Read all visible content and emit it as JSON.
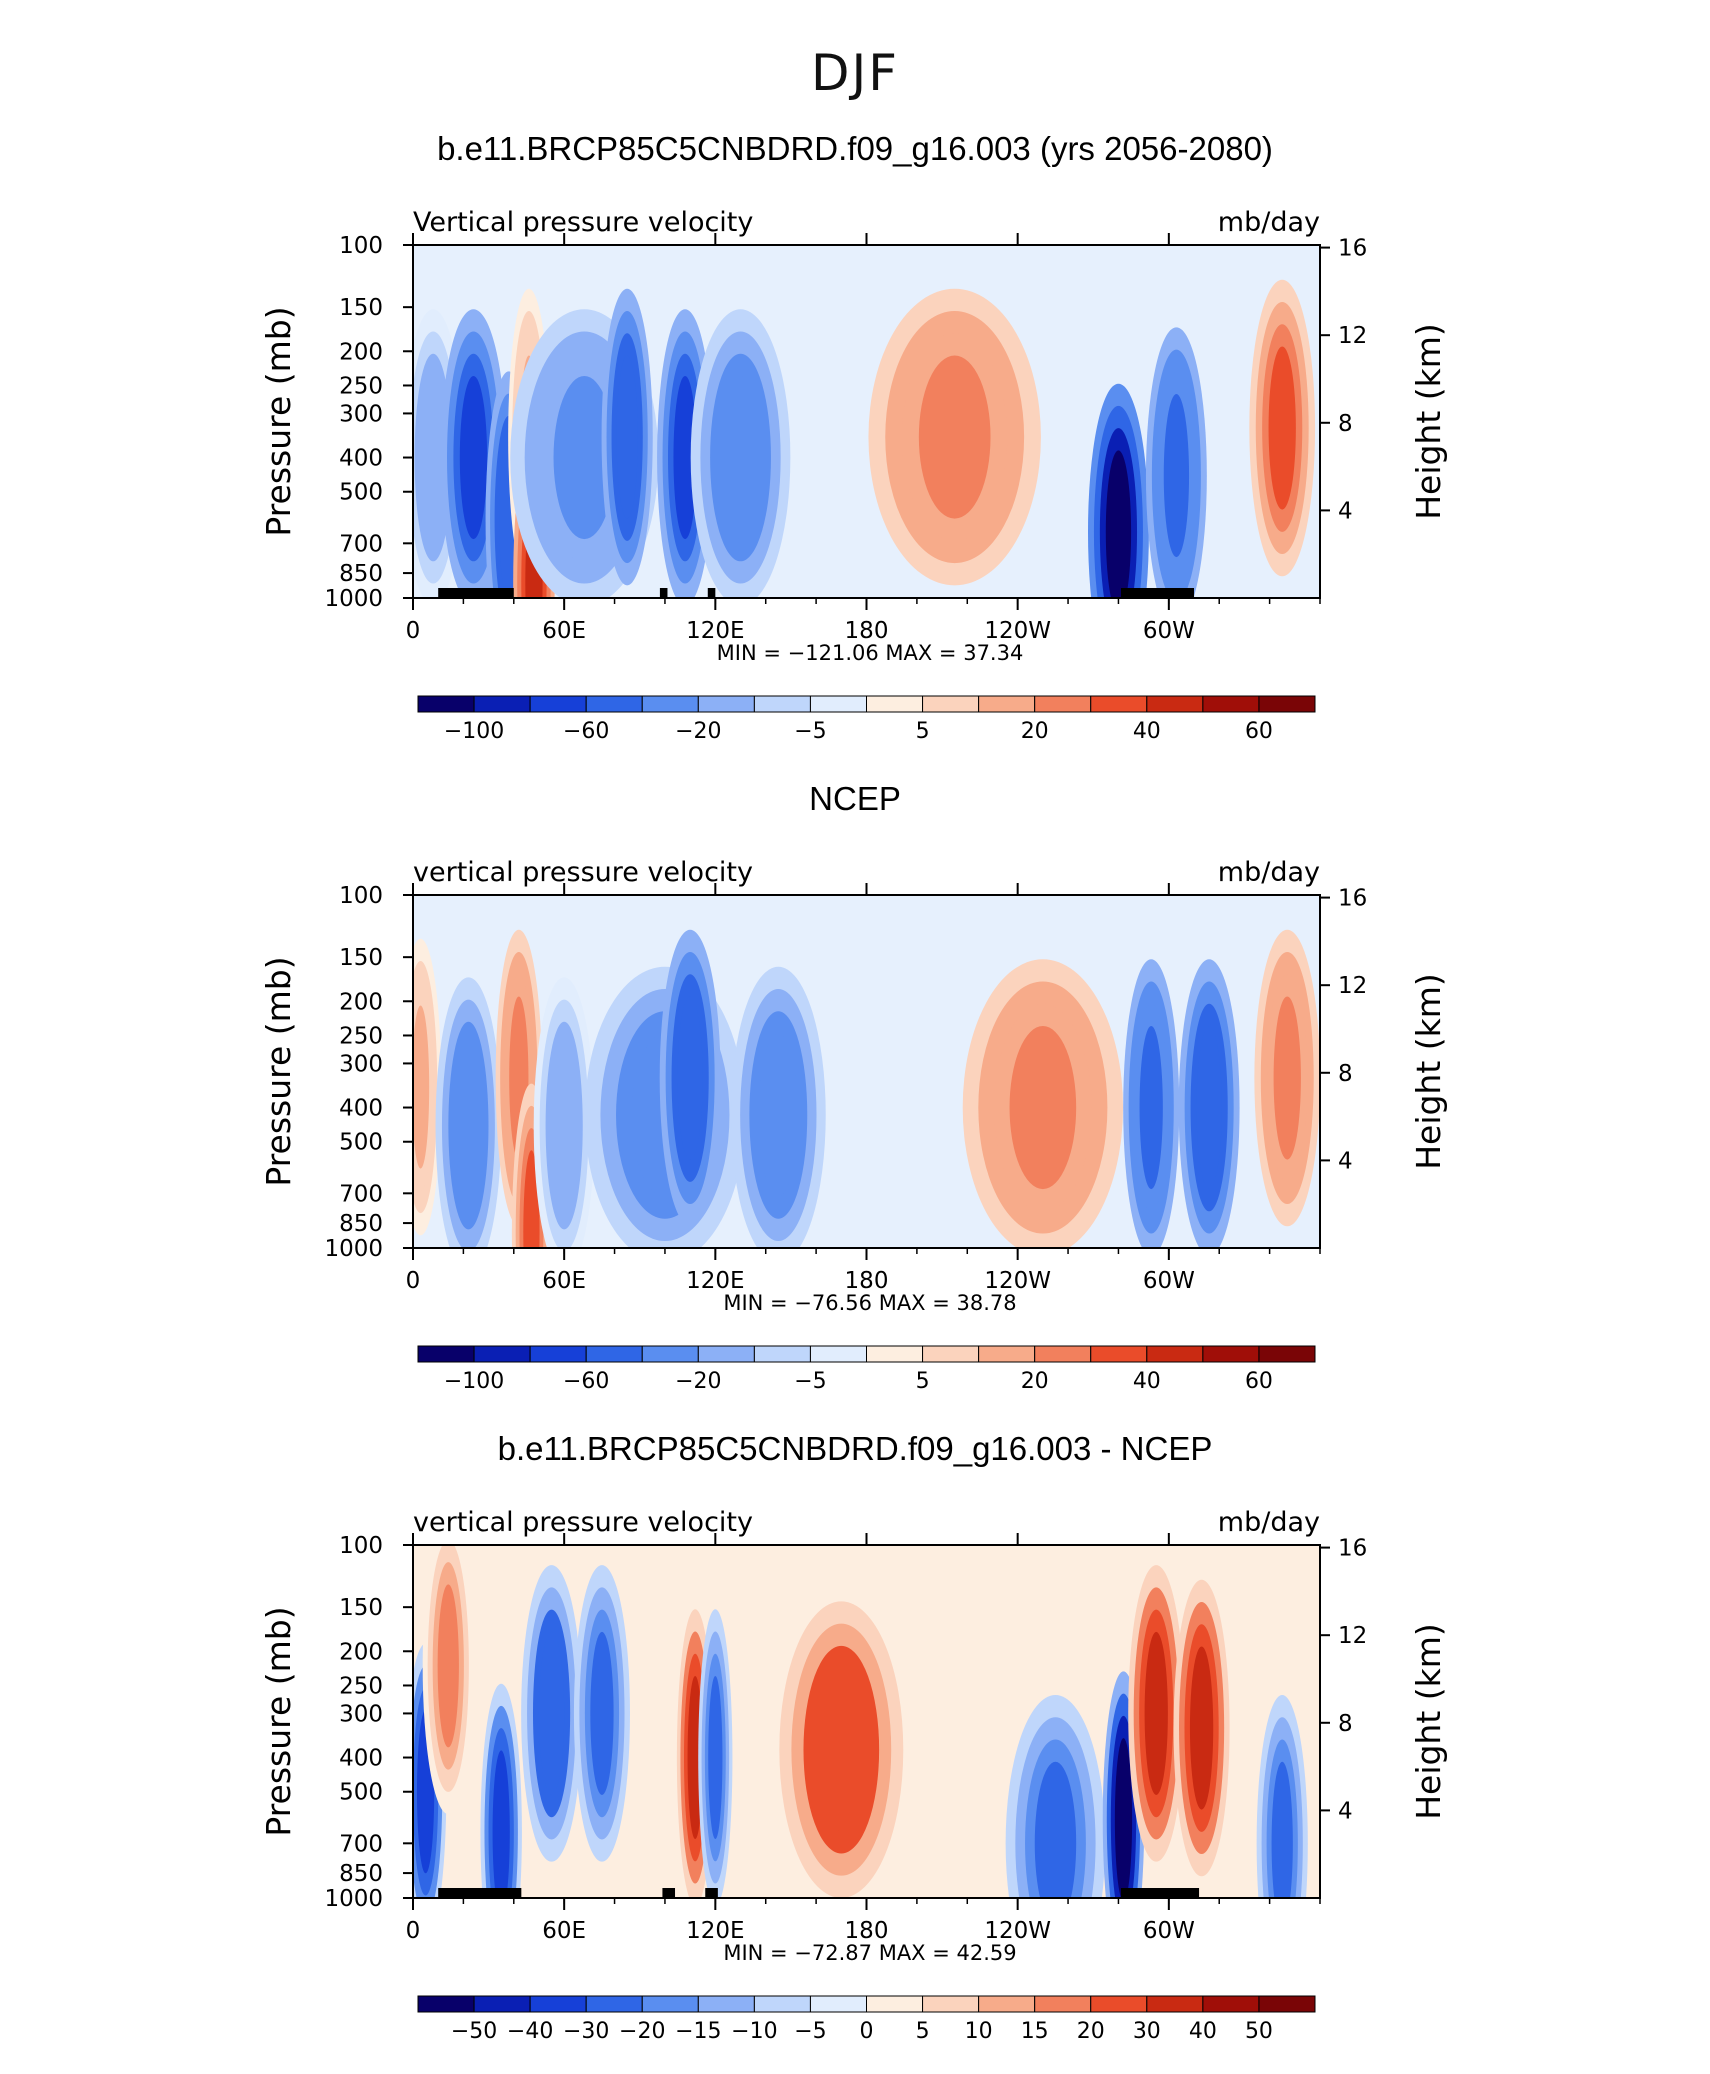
{
  "title": "DJF",
  "colors": {
    "palette": [
      "#08006a",
      "#0a1fb4",
      "#1640d8",
      "#2f66e6",
      "#5a8ef0",
      "#8cb0f6",
      "#bfd6fb",
      "#e1edfd",
      "#fdeee0",
      "#fbd3bd",
      "#f7ab8a",
      "#f2805d",
      "#ea4c2a",
      "#c92a12",
      "#a00e08",
      "#7a0506"
    ],
    "land": "#000000"
  },
  "panels": [
    {
      "title": "b.e11.BRCP85C5CNBDRD.f09_g16.003 (yrs 2056-2080)",
      "var_label": "Vertical pressure velocity",
      "units_label": "mb/day",
      "min_max": "MIN = −121.06   MAX =   37.34",
      "colorbar_labels": [
        "−100",
        "−60",
        "−20",
        "−5",
        "5",
        "20",
        "40",
        "60"
      ]
    },
    {
      "title": "NCEP",
      "var_label": "vertical pressure velocity",
      "units_label": "mb/day",
      "min_max": "MIN = −76.56   MAX =   38.78",
      "colorbar_labels": [
        "−100",
        "−60",
        "−20",
        "−5",
        "5",
        "20",
        "40",
        "60"
      ]
    },
    {
      "title": "b.e11.BRCP85C5CNBDRD.f09_g16.003 - NCEP",
      "var_label": "vertical pressure velocity",
      "units_label": "mb/day",
      "min_max": "MIN = −72.87   MAX =   42.59",
      "colorbar_labels": [
        "−50",
        "−40",
        "−30",
        "−20",
        "−15",
        "−10",
        "−5",
        "0",
        "5",
        "10",
        "15",
        "20",
        "30",
        "40",
        "50"
      ]
    }
  ],
  "chart_data": [
    {
      "type": "heatmap",
      "title": "b.e11.BRCP85C5CNBDRD.f09_g16.003 (yrs 2056-2080)",
      "ylabel": "Pressure (mb)",
      "ylabel_right": "Height (km)",
      "x_ticks": [
        "0",
        "60E",
        "120E",
        "180",
        "120W",
        "60W"
      ],
      "x_range": [
        0,
        360
      ],
      "y_ticks": [
        1000,
        850,
        700,
        500,
        400,
        300,
        250,
        200,
        150,
        100
      ],
      "y_range": [
        1000,
        100
      ],
      "y_scale": "log",
      "y_right_ticks": [
        4,
        8,
        12,
        16
      ],
      "levels": [
        -100,
        -80,
        -60,
        -40,
        -20,
        -10,
        -5,
        0,
        5,
        10,
        20,
        30,
        40,
        50,
        60
      ],
      "min": -121.06,
      "max": 37.34,
      "features": [
        {
          "lon": 8,
          "lon_width": 14,
          "p_center": 400,
          "value": -20
        },
        {
          "lon": 24,
          "lon_width": 16,
          "p_center": 400,
          "value": -80
        },
        {
          "lon": 38,
          "lon_width": 8,
          "p_center": 600,
          "value": -60
        },
        {
          "lon": 46,
          "lon_width": 6,
          "p_center": 350,
          "value": 12
        },
        {
          "lon": 48,
          "lon_width": 6,
          "p_center": 900,
          "value": 40
        },
        {
          "lon": 68,
          "lon_width": 50,
          "p_center": 400,
          "value": -25
        },
        {
          "lon": 85,
          "lon_width": 10,
          "p_center": 350,
          "value": -55
        },
        {
          "lon": 108,
          "lon_width": 12,
          "p_center": 400,
          "value": -75
        },
        {
          "lon": 130,
          "lon_width": 30,
          "p_center": 400,
          "value": -28
        },
        {
          "lon": 215,
          "lon_width": 60,
          "p_center": 350,
          "value": 25
        },
        {
          "lon": 280,
          "lon_width": 14,
          "p_center": 650,
          "value": -110
        },
        {
          "lon": 303,
          "lon_width": 14,
          "p_center": 450,
          "value": -50
        },
        {
          "lon": 345,
          "lon_width": 16,
          "p_center": 330,
          "value": 30
        }
      ],
      "land": [
        [
          10,
          40
        ],
        [
          98,
          101
        ],
        [
          117,
          120
        ],
        [
          281,
          310
        ]
      ]
    },
    {
      "type": "heatmap",
      "title": "NCEP",
      "ylabel": "Pressure (mb)",
      "ylabel_right": "Height (km)",
      "x_ticks": [
        "0",
        "60E",
        "120E",
        "180",
        "120W",
        "60W"
      ],
      "x_range": [
        0,
        360
      ],
      "y_ticks": [
        1000,
        850,
        700,
        500,
        400,
        300,
        250,
        200,
        150,
        100
      ],
      "y_range": [
        1000,
        100
      ],
      "y_scale": "log",
      "y_right_ticks": [
        4,
        8,
        12,
        16
      ],
      "levels": [
        -100,
        -80,
        -60,
        -40,
        -20,
        -10,
        -5,
        0,
        5,
        10,
        20,
        30,
        40,
        50,
        60
      ],
      "min": -76.56,
      "max": 38.78,
      "features": [
        {
          "lon": 3,
          "lon_width": 6,
          "p_center": 350,
          "value": 10
        },
        {
          "lon": 22,
          "lon_width": 16,
          "p_center": 450,
          "value": -40
        },
        {
          "lon": 42,
          "lon_width": 8,
          "p_center": 330,
          "value": 25
        },
        {
          "lon": 47,
          "lon_width": 5,
          "p_center": 900,
          "value": 35
        },
        {
          "lon": 60,
          "lon_width": 14,
          "p_center": 450,
          "value": -15
        },
        {
          "lon": 100,
          "lon_width": 55,
          "p_center": 420,
          "value": -35
        },
        {
          "lon": 110,
          "lon_width": 14,
          "p_center": 330,
          "value": -60
        },
        {
          "lon": 145,
          "lon_width": 28,
          "p_center": 420,
          "value": -40
        },
        {
          "lon": 250,
          "lon_width": 55,
          "p_center": 400,
          "value": 25
        },
        {
          "lon": 293,
          "lon_width": 12,
          "p_center": 400,
          "value": -45
        },
        {
          "lon": 316,
          "lon_width": 14,
          "p_center": 400,
          "value": -55
        },
        {
          "lon": 347,
          "lon_width": 16,
          "p_center": 330,
          "value": 25
        }
      ],
      "land": []
    },
    {
      "type": "heatmap",
      "title": "b.e11.BRCP85C5CNBDRD.f09_g16.003 - NCEP",
      "ylabel": "Pressure (mb)",
      "ylabel_right": "Height (km)",
      "x_ticks": [
        "0",
        "60E",
        "120E",
        "180",
        "120W",
        "60W"
      ],
      "x_range": [
        0,
        360
      ],
      "y_ticks": [
        1000,
        850,
        700,
        500,
        400,
        300,
        250,
        200,
        150,
        100
      ],
      "y_range": [
        1000,
        100
      ],
      "y_scale": "log",
      "y_right_ticks": [
        4,
        8,
        12,
        16
      ],
      "levels": [
        -50,
        -40,
        -30,
        -20,
        -15,
        -10,
        -5,
        0,
        5,
        10,
        15,
        20,
        30,
        40,
        50
      ],
      "min": -72.87,
      "max": 42.59,
      "features": [
        {
          "lon": 5,
          "lon_width": 6,
          "p_center": 500,
          "value": -35
        },
        {
          "lon": 14,
          "lon_width": 10,
          "p_center": 220,
          "value": 18
        },
        {
          "lon": 35,
          "lon_width": 6,
          "p_center": 650,
          "value": -35
        },
        {
          "lon": 55,
          "lon_width": 14,
          "p_center": 300,
          "value": -30
        },
        {
          "lon": 75,
          "lon_width": 12,
          "p_center": 300,
          "value": -25
        },
        {
          "lon": 112,
          "lon_width": 4,
          "p_center": 400,
          "value": 30
        },
        {
          "lon": 120,
          "lon_width": 3,
          "p_center": 400,
          "value": -25
        },
        {
          "lon": 170,
          "lon_width": 40,
          "p_center": 380,
          "value": 28
        },
        {
          "lon": 255,
          "lon_width": 30,
          "p_center": 700,
          "value": -25
        },
        {
          "lon": 282,
          "lon_width": 6,
          "p_center": 600,
          "value": -55
        },
        {
          "lon": 295,
          "lon_width": 12,
          "p_center": 300,
          "value": 30
        },
        {
          "lon": 313,
          "lon_width": 12,
          "p_center": 330,
          "value": 35
        },
        {
          "lon": 345,
          "lon_width": 10,
          "p_center": 700,
          "value": -25
        }
      ],
      "land": [
        [
          10,
          43
        ],
        [
          99,
          104
        ],
        [
          116,
          121
        ],
        [
          281,
          312
        ]
      ]
    }
  ]
}
